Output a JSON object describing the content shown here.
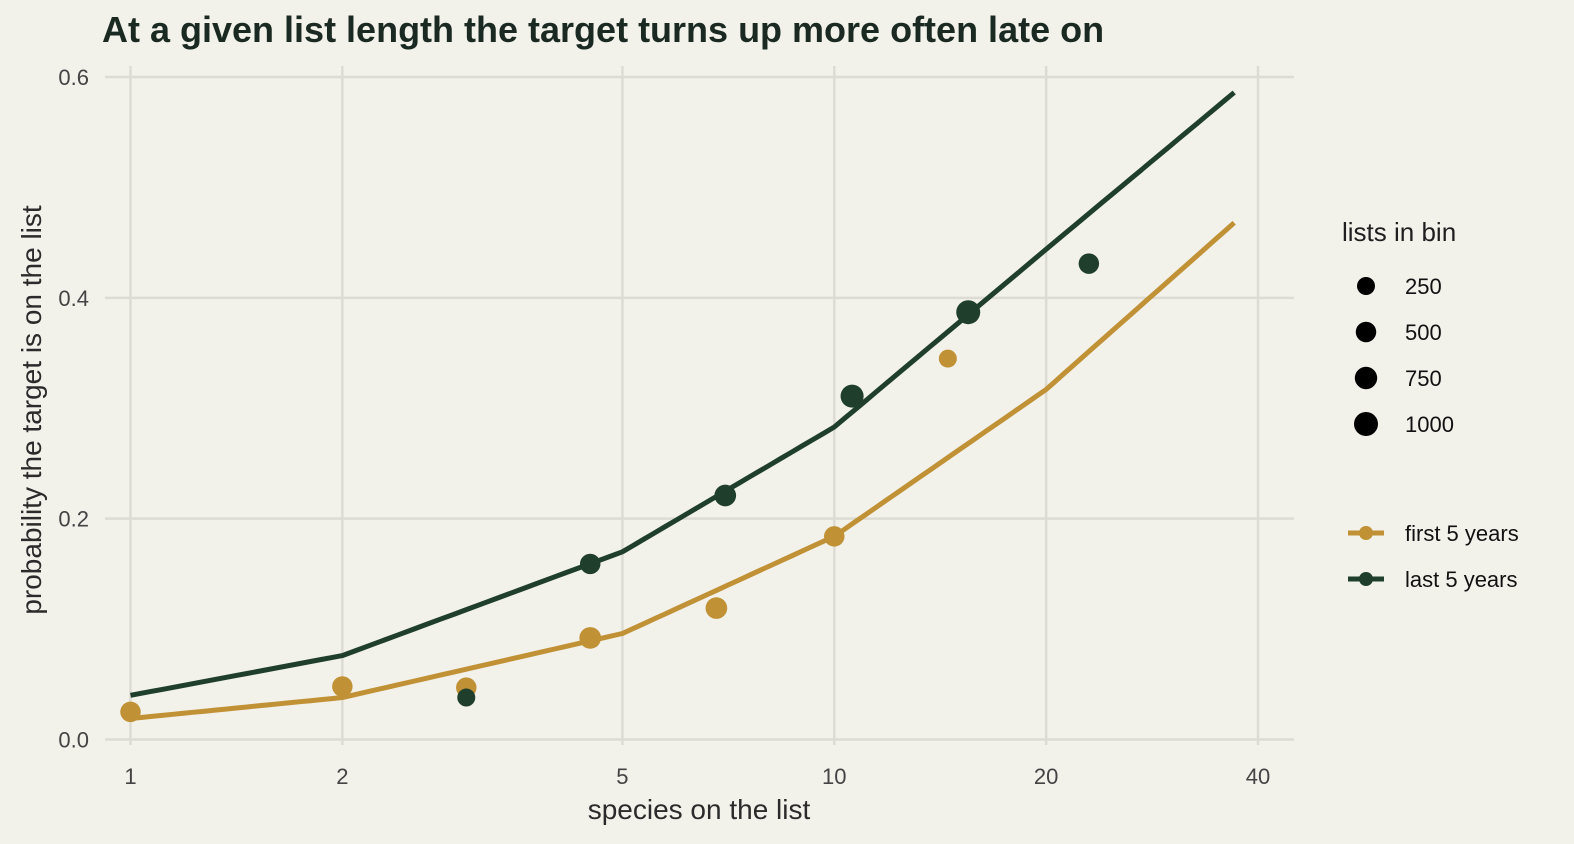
{
  "chart_data": {
    "type": "scatter",
    "title": "At a given list length the target turns up more often late on",
    "xlabel": "species on the list",
    "ylabel": "probability the target is on the list",
    "x_scale": "log",
    "xlim": [
      0.92,
      45
    ],
    "ylim": [
      -0.005,
      0.61
    ],
    "x_ticks": [
      1,
      2,
      5,
      10,
      20,
      40
    ],
    "x_tick_labels": [
      "1",
      "2",
      "5",
      "10",
      "20",
      "40"
    ],
    "y_ticks": [
      0.0,
      0.2,
      0.4,
      0.6
    ],
    "y_tick_labels": [
      "0.0",
      "0.2",
      "0.4",
      "0.6"
    ],
    "grid": true,
    "size_legend": {
      "title": "lists in bin",
      "entries": [
        {
          "label": "250",
          "value": 250
        },
        {
          "label": "500",
          "value": 500
        },
        {
          "label": "750",
          "value": 750
        },
        {
          "label": "1000",
          "value": 1000
        }
      ]
    },
    "series": [
      {
        "name": "first 5 years",
        "color": "#c19136",
        "points": [
          {
            "x": 1,
            "y": 0.025,
            "n": 500
          },
          {
            "x": 2,
            "y": 0.048,
            "n": 500
          },
          {
            "x": 3,
            "y": 0.047,
            "n": 500
          },
          {
            "x": 4.5,
            "y": 0.092,
            "n": 650
          },
          {
            "x": 6.8,
            "y": 0.119,
            "n": 650
          },
          {
            "x": 10,
            "y": 0.184,
            "n": 500
          },
          {
            "x": 14.5,
            "y": 0.345,
            "n": 250
          }
        ],
        "fit": [
          {
            "x": 1,
            "y": 0.019
          },
          {
            "x": 2,
            "y": 0.038
          },
          {
            "x": 5,
            "y": 0.096
          },
          {
            "x": 10,
            "y": 0.184
          },
          {
            "x": 20,
            "y": 0.317
          },
          {
            "x": 37,
            "y": 0.468
          }
        ]
      },
      {
        "name": "last 5 years",
        "color": "#1f3f2c",
        "points": [
          {
            "x": 3,
            "y": 0.038,
            "n": 250
          },
          {
            "x": 4.5,
            "y": 0.159,
            "n": 500
          },
          {
            "x": 7,
            "y": 0.221,
            "n": 650
          },
          {
            "x": 10.6,
            "y": 0.311,
            "n": 850
          },
          {
            "x": 15.5,
            "y": 0.387,
            "n": 1000
          },
          {
            "x": 23,
            "y": 0.431,
            "n": 500
          }
        ],
        "fit": [
          {
            "x": 1,
            "y": 0.04
          },
          {
            "x": 2,
            "y": 0.076
          },
          {
            "x": 5,
            "y": 0.17
          },
          {
            "x": 10,
            "y": 0.283
          },
          {
            "x": 20,
            "y": 0.444
          },
          {
            "x": 37,
            "y": 0.586
          }
        ]
      }
    ]
  }
}
